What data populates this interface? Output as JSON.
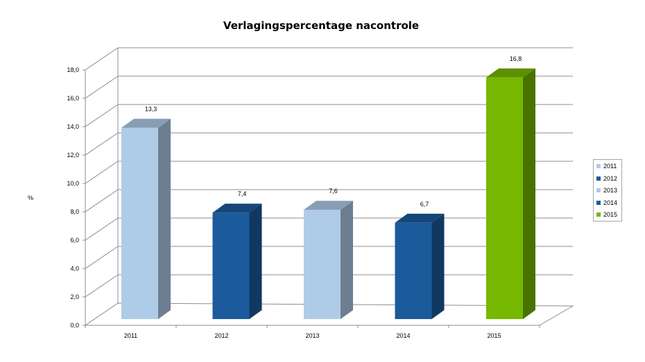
{
  "chart_data": {
    "type": "bar",
    "title": "Verlagingspercentage nacontrole",
    "ylabel": "%",
    "xlabel": "",
    "ylim": [
      0,
      18
    ],
    "ytick_labels": [
      "0,0",
      "2,0",
      "4,0",
      "6,0",
      "8,0",
      "10,0",
      "12,0",
      "14,0",
      "16,0",
      "18,0"
    ],
    "categories": [
      "2011",
      "2012",
      "2013",
      "2014",
      "2015"
    ],
    "values": [
      13.3,
      7.4,
      7.6,
      6.7,
      16.8
    ],
    "value_labels": [
      "13,3",
      "7,4",
      "7,6",
      "6,7",
      "16,8"
    ],
    "grid": true,
    "legend_position": "right",
    "legend": [
      {
        "name": "2011",
        "color": "#aecbe8"
      },
      {
        "name": "2012",
        "color": "#1b5a9b"
      },
      {
        "name": "2013",
        "color": "#aecbe8"
      },
      {
        "name": "2014",
        "color": "#1b5a9b"
      },
      {
        "name": "2015",
        "color": "#76b900"
      }
    ],
    "bar_colors": [
      "#aecbe8",
      "#1b5a9b",
      "#aecbe8",
      "#1b5a9b",
      "#76b900"
    ]
  }
}
